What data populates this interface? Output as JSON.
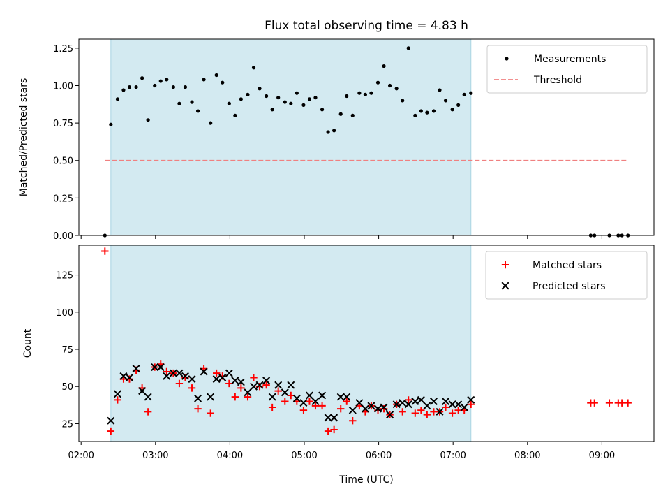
{
  "chart_data": {
    "title": "Flux total observing time = 4.83 h",
    "xlabel": "Time (UTC)",
    "x_ticks": [
      {
        "value": 2.0,
        "label": "02:00"
      },
      {
        "value": 3.0,
        "label": "03:00"
      },
      {
        "value": 4.0,
        "label": "04:00"
      },
      {
        "value": 5.0,
        "label": "05:00"
      },
      {
        "value": 6.0,
        "label": "06:00"
      },
      {
        "value": 7.0,
        "label": "07:00"
      },
      {
        "value": 8.0,
        "label": "08:00"
      },
      {
        "value": 9.0,
        "label": "09:00"
      }
    ],
    "xlim": [
      1.97,
      9.7
    ],
    "observing_window": [
      2.4,
      7.24
    ],
    "colors": {
      "shade": "#d3eaf1",
      "shade_edge": "#a8d4e2",
      "measure": "#000000",
      "threshold": "#f08080",
      "matched": "#ff0000",
      "predicted": "#000000"
    },
    "panels": [
      {
        "type": "scatter",
        "ylabel": "Matched/Predicted stars",
        "ylim": [
          0,
          1.31
        ],
        "y_ticks": [
          {
            "value": 0.0,
            "label": "0.00"
          },
          {
            "value": 0.25,
            "label": "0.25"
          },
          {
            "value": 0.5,
            "label": "0.50"
          },
          {
            "value": 0.75,
            "label": "0.75"
          },
          {
            "value": 1.0,
            "label": "1.00"
          },
          {
            "value": 1.25,
            "label": "1.25"
          }
        ],
        "legend": {
          "position": "upper right",
          "entries": [
            "Measurements",
            "Threshold"
          ]
        },
        "threshold": {
          "name": "Threshold",
          "y": 0.5,
          "x_range": [
            2.32,
            9.35
          ]
        },
        "series": [
          {
            "name": "Measurements",
            "marker": "dot",
            "x": [
              2.32,
              2.4,
              2.49,
              2.57,
              2.65,
              2.74,
              2.82,
              2.9,
              2.99,
              3.07,
              3.15,
              3.24,
              3.32,
              3.4,
              3.49,
              3.57,
              3.65,
              3.74,
              3.82,
              3.9,
              3.99,
              4.07,
              4.15,
              4.24,
              4.32,
              4.4,
              4.49,
              4.57,
              4.65,
              4.74,
              4.82,
              4.9,
              4.99,
              5.07,
              5.15,
              5.24,
              5.32,
              5.4,
              5.49,
              5.57,
              5.65,
              5.74,
              5.82,
              5.9,
              5.99,
              6.07,
              6.15,
              6.24,
              6.32,
              6.4,
              6.49,
              6.57,
              6.65,
              6.74,
              6.82,
              6.9,
              6.99,
              7.07,
              7.15,
              7.24,
              8.85,
              8.9,
              9.1,
              9.22,
              9.27,
              9.35
            ],
            "y": [
              0.0,
              0.74,
              0.91,
              0.97,
              0.99,
              0.99,
              1.05,
              0.77,
              1.0,
              1.03,
              1.04,
              0.99,
              0.88,
              0.99,
              0.89,
              0.83,
              1.04,
              0.75,
              1.07,
              1.02,
              0.88,
              0.8,
              0.91,
              0.94,
              1.12,
              0.98,
              0.93,
              0.84,
              0.92,
              0.89,
              0.88,
              0.95,
              0.87,
              0.91,
              0.92,
              0.84,
              0.69,
              0.7,
              0.81,
              0.93,
              0.8,
              0.95,
              0.94,
              0.95,
              1.02,
              1.13,
              1.0,
              0.98,
              0.9,
              1.25,
              0.8,
              0.83,
              0.82,
              0.83,
              0.97,
              0.9,
              0.84,
              0.87,
              0.94,
              0.95,
              0.0,
              0.0,
              0.0,
              0.0,
              0.0,
              0.0
            ]
          }
        ]
      },
      {
        "type": "scatter",
        "ylabel": "Count",
        "ylim": [
          13,
          145
        ],
        "y_ticks": [
          {
            "value": 25,
            "label": "25"
          },
          {
            "value": 50,
            "label": "50"
          },
          {
            "value": 75,
            "label": "75"
          },
          {
            "value": 100,
            "label": "100"
          },
          {
            "value": 125,
            "label": "125"
          }
        ],
        "legend": {
          "position": "upper right",
          "entries": [
            "Matched stars",
            "Predicted stars"
          ]
        },
        "series": [
          {
            "name": "Matched stars",
            "marker": "plus",
            "x": [
              2.32,
              2.4,
              2.49,
              2.57,
              2.65,
              2.74,
              2.82,
              2.9,
              2.99,
              3.07,
              3.15,
              3.24,
              3.32,
              3.4,
              3.49,
              3.57,
              3.65,
              3.74,
              3.82,
              3.9,
              3.99,
              4.07,
              4.15,
              4.24,
              4.32,
              4.4,
              4.49,
              4.57,
              4.65,
              4.74,
              4.82,
              4.9,
              4.99,
              5.07,
              5.15,
              5.24,
              5.32,
              5.4,
              5.49,
              5.57,
              5.65,
              5.74,
              5.82,
              5.9,
              5.99,
              6.07,
              6.15,
              6.24,
              6.32,
              6.4,
              6.49,
              6.57,
              6.65,
              6.74,
              6.82,
              6.9,
              6.99,
              7.07,
              7.15,
              7.24,
              8.85,
              8.9,
              9.1,
              9.22,
              9.27,
              9.35
            ],
            "y": [
              141,
              20,
              41,
              55,
              55,
              61,
              49,
              33,
              63,
              65,
              60,
              59,
              52,
              56,
              49,
              35,
              62,
              32,
              59,
              57,
              52,
              43,
              49,
              43,
              56,
              50,
              51,
              36,
              47,
              40,
              44,
              40,
              34,
              40,
              37,
              37,
              20,
              21,
              35,
              40,
              27,
              37,
              33,
              37,
              34,
              35,
              31,
              38,
              33,
              41,
              32,
              34,
              31,
              33,
              33,
              36,
              32,
              34,
              34,
              38,
              39,
              39,
              39,
              39,
              39,
              39
            ]
          },
          {
            "name": "Predicted stars",
            "marker": "x",
            "x": [
              2.4,
              2.49,
              2.57,
              2.65,
              2.74,
              2.82,
              2.9,
              2.99,
              3.07,
              3.15,
              3.24,
              3.32,
              3.4,
              3.49,
              3.57,
              3.65,
              3.74,
              3.82,
              3.9,
              3.99,
              4.07,
              4.15,
              4.24,
              4.32,
              4.4,
              4.49,
              4.57,
              4.65,
              4.74,
              4.82,
              4.9,
              4.99,
              5.07,
              5.15,
              5.24,
              5.32,
              5.4,
              5.49,
              5.57,
              5.65,
              5.74,
              5.82,
              5.9,
              5.99,
              6.07,
              6.15,
              6.24,
              6.32,
              6.4,
              6.49,
              6.57,
              6.65,
              6.74,
              6.82,
              6.9,
              6.99,
              7.07,
              7.15,
              7.24
            ],
            "y": [
              27,
              45,
              57,
              56,
              62,
              47,
              43,
              63,
              63,
              57,
              59,
              59,
              57,
              55,
              42,
              60,
              43,
              55,
              56,
              59,
              54,
              53,
              46,
              50,
              51,
              54,
              43,
              51,
              46,
              51,
              42,
              39,
              44,
              40,
              44,
              29,
              29,
              43,
              43,
              34,
              39,
              35,
              37,
              35,
              36,
              31,
              38,
              39,
              38,
              40,
              41,
              37,
              40,
              33,
              40,
              38,
              38,
              36,
              41
            ]
          }
        ]
      }
    ]
  }
}
